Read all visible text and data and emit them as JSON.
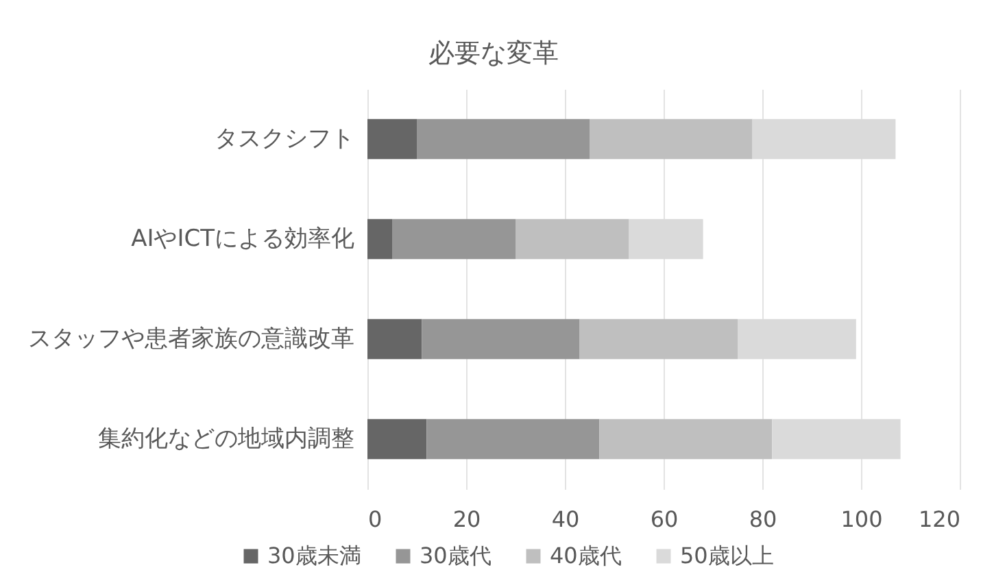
{
  "chart_data": {
    "type": "bar",
    "title": "必要な変革",
    "orientation": "horizontal",
    "stacked": true,
    "categories": [
      "タスクシフト",
      "AIやICTによる効率化",
      "スタッフや患者家族の意識改革",
      "集約化などの地域内調整"
    ],
    "series": [
      {
        "name": "30歳未満",
        "color": "#666666",
        "values": [
          10,
          5,
          11,
          12
        ]
      },
      {
        "name": "30歳代",
        "color": "#969696",
        "values": [
          35,
          25,
          32,
          35
        ]
      },
      {
        "name": "40歳代",
        "color": "#bfbfbf",
        "values": [
          33,
          23,
          32,
          35
        ]
      },
      {
        "name": "50歳以上",
        "color": "#dadada",
        "values": [
          29,
          15,
          24,
          26
        ]
      }
    ],
    "xlim": [
      0,
      120
    ],
    "xticks": [
      0,
      20,
      40,
      60,
      80,
      100,
      120
    ],
    "grid": "x",
    "legend": "bottom"
  }
}
